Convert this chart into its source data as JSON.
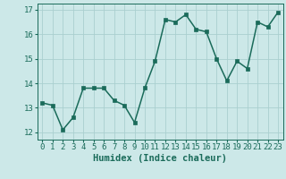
{
  "x": [
    0,
    1,
    2,
    3,
    4,
    5,
    6,
    7,
    8,
    9,
    10,
    11,
    12,
    13,
    14,
    15,
    16,
    17,
    18,
    19,
    20,
    21,
    22,
    23
  ],
  "y": [
    13.2,
    13.1,
    12.1,
    12.6,
    13.8,
    13.8,
    13.8,
    13.3,
    13.1,
    12.4,
    13.8,
    14.9,
    16.6,
    16.5,
    16.8,
    16.2,
    16.1,
    15.0,
    14.1,
    14.9,
    14.6,
    16.5,
    16.3,
    16.9
  ],
  "line_color": "#1a6b5a",
  "marker_color": "#1a6b5a",
  "bg_color": "#cce8e8",
  "grid_color": "#aacfcf",
  "xlabel": "Humidex (Indice chaleur)",
  "xlim": [
    -0.5,
    23.5
  ],
  "ylim": [
    11.7,
    17.25
  ],
  "yticks": [
    12,
    13,
    14,
    15,
    16,
    17
  ],
  "xticks": [
    0,
    1,
    2,
    3,
    4,
    5,
    6,
    7,
    8,
    9,
    10,
    11,
    12,
    13,
    14,
    15,
    16,
    17,
    18,
    19,
    20,
    21,
    22,
    23
  ],
  "font_color": "#1a6b5a",
  "tick_fontsize": 6.5,
  "label_fontsize": 7.5,
  "line_width": 1.1,
  "marker_size": 2.5
}
